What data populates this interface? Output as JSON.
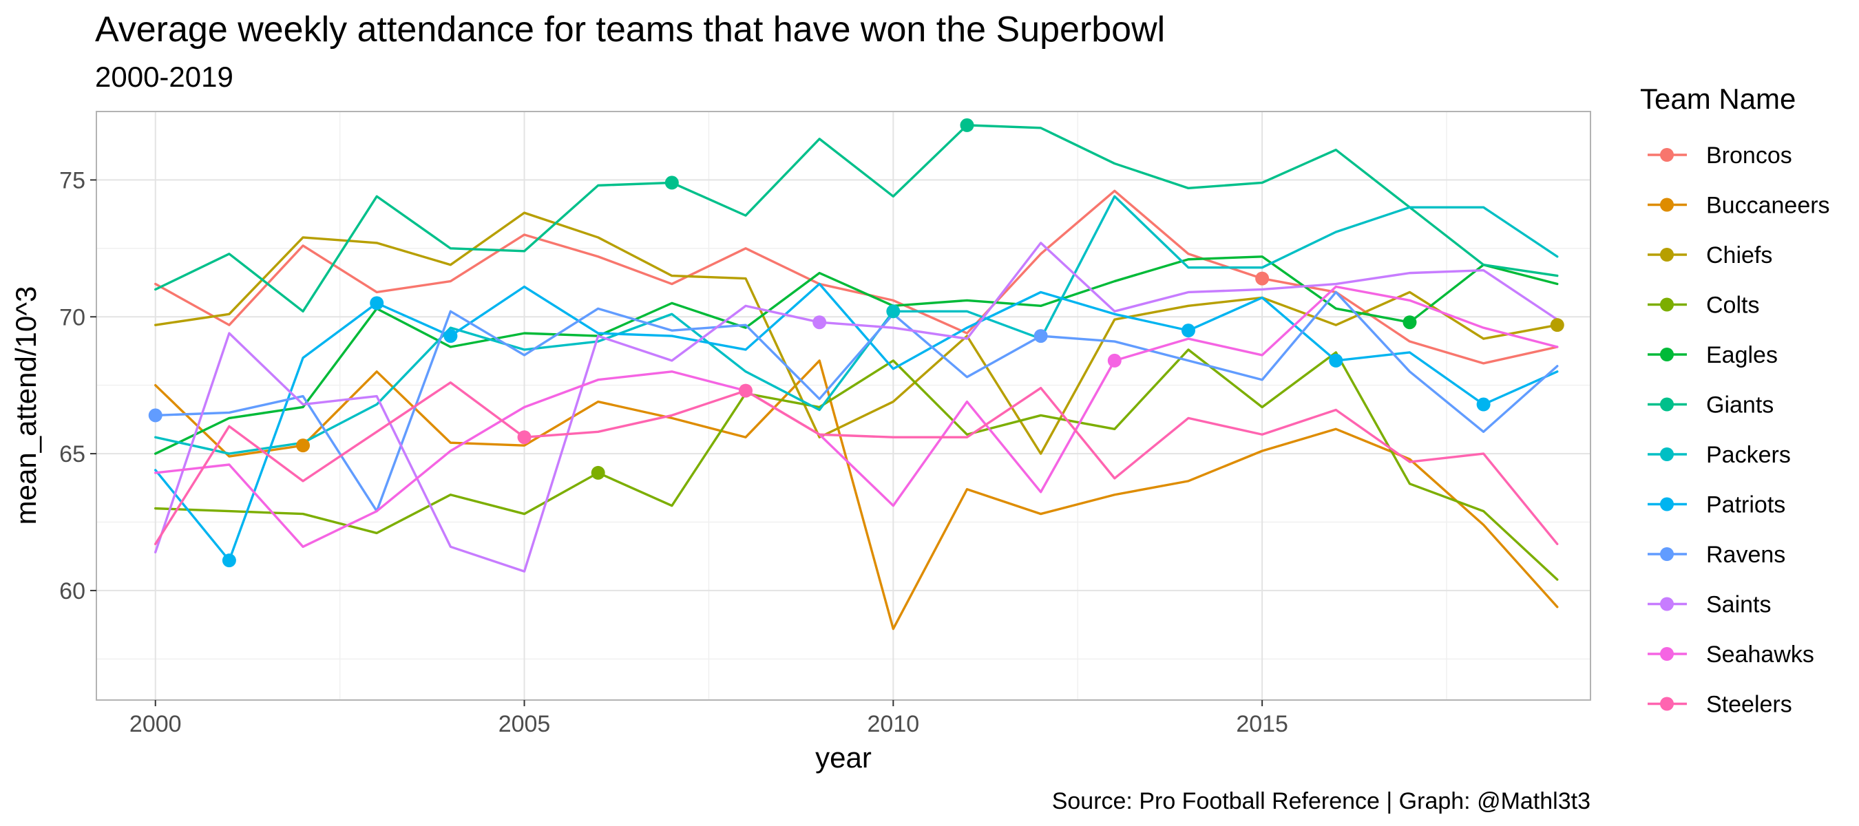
{
  "chart_data": {
    "type": "line",
    "title": "Average weekly attendance for teams that have won the Superbowl",
    "subtitle": "2000-2019",
    "xlabel": "year",
    "ylabel": "mean_attend/10^3",
    "caption": "Source: Pro Football Reference | Graph: @Mathl3t3",
    "legend_title": "Team Name",
    "legend_position": "right",
    "grid": true,
    "xlim": [
      1999.2,
      2019.45
    ],
    "ylim": [
      56.0,
      77.5
    ],
    "x_ticks": [
      2000,
      2005,
      2010,
      2015
    ],
    "y_ticks": [
      60,
      65,
      70,
      75
    ],
    "x": [
      2000,
      2001,
      2002,
      2003,
      2004,
      2005,
      2006,
      2007,
      2008,
      2009,
      2010,
      2011,
      2012,
      2013,
      2014,
      2015,
      2016,
      2017,
      2018,
      2019
    ],
    "series": [
      {
        "name": "Broncos",
        "color": "#F8766D",
        "values": [
          71.2,
          69.7,
          72.6,
          70.9,
          71.3,
          73.0,
          72.2,
          71.2,
          72.5,
          71.2,
          70.6,
          69.4,
          72.3,
          74.6,
          72.3,
          71.4,
          70.9,
          69.1,
          68.3,
          68.9
        ],
        "highlight": [
          {
            "x": 2015,
            "y": 71.4
          }
        ]
      },
      {
        "name": "Buccaneers",
        "color": "#DE8C00",
        "values": [
          67.5,
          64.9,
          65.3,
          68.0,
          65.4,
          65.3,
          66.9,
          66.3,
          65.6,
          68.4,
          58.6,
          63.7,
          62.8,
          63.5,
          64.0,
          65.1,
          65.9,
          64.8,
          62.4,
          59.4
        ],
        "highlight": [
          {
            "x": 2002,
            "y": 65.3
          }
        ]
      },
      {
        "name": "Chiefs",
        "color": "#B79F00",
        "values": [
          69.7,
          70.1,
          72.9,
          72.7,
          71.9,
          73.8,
          72.9,
          71.5,
          71.4,
          65.6,
          66.9,
          69.3,
          65.0,
          69.9,
          70.4,
          70.7,
          69.7,
          70.9,
          69.2,
          69.7
        ],
        "highlight": [
          {
            "x": 2019,
            "y": 69.7
          }
        ]
      },
      {
        "name": "Colts",
        "color": "#7CAE00",
        "values": [
          63.0,
          62.9,
          62.8,
          62.1,
          63.5,
          62.8,
          64.3,
          63.1,
          67.2,
          66.7,
          68.4,
          65.7,
          66.4,
          65.9,
          68.8,
          66.7,
          68.7,
          63.9,
          62.9,
          60.4
        ],
        "highlight": [
          {
            "x": 2006,
            "y": 64.3
          }
        ]
      },
      {
        "name": "Eagles",
        "color": "#00BA38",
        "values": [
          65.0,
          66.3,
          66.7,
          70.3,
          68.9,
          69.4,
          69.3,
          70.5,
          69.6,
          71.6,
          70.4,
          70.6,
          70.4,
          71.3,
          72.1,
          72.2,
          70.3,
          69.8,
          71.9,
          71.2
        ],
        "highlight": [
          {
            "x": 2017,
            "y": 69.8
          }
        ]
      },
      {
        "name": "Giants",
        "color": "#00C08B",
        "values": [
          71.0,
          72.3,
          70.2,
          74.4,
          72.5,
          72.4,
          74.8,
          74.9,
          73.7,
          76.5,
          74.4,
          77.0,
          76.9,
          75.6,
          74.7,
          74.9,
          76.1,
          74.0,
          71.9,
          71.5
        ],
        "highlight": [
          {
            "x": 2007,
            "y": 74.9
          },
          {
            "x": 2011,
            "y": 77.0
          }
        ]
      },
      {
        "name": "Packers",
        "color": "#00BFC4",
        "values": [
          65.6,
          65.0,
          65.4,
          66.8,
          69.6,
          68.8,
          69.1,
          70.1,
          68.0,
          66.6,
          70.2,
          70.2,
          69.2,
          74.4,
          71.8,
          71.8,
          73.1,
          74.0,
          74.0,
          72.2
        ],
        "highlight": [
          {
            "x": 2010,
            "y": 70.2
          }
        ]
      },
      {
        "name": "Patriots",
        "color": "#00B4F0",
        "values": [
          64.4,
          61.1,
          68.5,
          70.5,
          69.3,
          71.1,
          69.4,
          69.3,
          68.8,
          71.2,
          68.1,
          69.6,
          70.9,
          70.1,
          69.5,
          70.7,
          68.4,
          68.7,
          66.8,
          68.0
        ],
        "highlight": [
          {
            "x": 2001,
            "y": 61.1
          },
          {
            "x": 2003,
            "y": 70.5
          },
          {
            "x": 2004,
            "y": 69.3
          },
          {
            "x": 2014,
            "y": 69.5
          },
          {
            "x": 2016,
            "y": 68.4
          },
          {
            "x": 2018,
            "y": 66.8
          }
        ]
      },
      {
        "name": "Ravens",
        "color": "#619CFF",
        "values": [
          66.4,
          66.5,
          67.1,
          62.9,
          70.2,
          68.6,
          70.3,
          69.5,
          69.7,
          67.0,
          70.1,
          67.8,
          69.3,
          69.1,
          68.4,
          67.7,
          70.9,
          68.0,
          65.8,
          68.2
        ],
        "highlight": [
          {
            "x": 2000,
            "y": 66.4
          },
          {
            "x": 2012,
            "y": 69.3
          }
        ]
      },
      {
        "name": "Saints",
        "color": "#C77CFF",
        "values": [
          61.4,
          69.4,
          66.8,
          67.1,
          61.6,
          60.7,
          69.3,
          68.4,
          70.4,
          69.8,
          69.6,
          69.2,
          72.7,
          70.2,
          70.9,
          71.0,
          71.2,
          71.6,
          71.7,
          69.9
        ],
        "highlight": [
          {
            "x": 2009,
            "y": 69.8
          }
        ]
      },
      {
        "name": "Seahawks",
        "color": "#F564E3",
        "values": [
          64.3,
          64.6,
          61.6,
          62.9,
          65.1,
          66.7,
          67.7,
          68.0,
          67.3,
          65.7,
          63.1,
          66.9,
          63.6,
          68.4,
          69.2,
          68.6,
          71.1,
          70.6,
          69.6,
          68.9
        ],
        "highlight": [
          {
            "x": 2013,
            "y": 68.4
          }
        ]
      },
      {
        "name": "Steelers",
        "color": "#FF64B0",
        "values": [
          61.7,
          66.0,
          64.0,
          65.8,
          67.6,
          65.6,
          65.8,
          66.4,
          67.3,
          65.7,
          65.6,
          65.6,
          67.4,
          64.1,
          66.3,
          65.7,
          66.6,
          64.7,
          65.0,
          61.7
        ],
        "highlight": [
          {
            "x": 2005,
            "y": 65.6
          },
          {
            "x": 2008,
            "y": 67.3
          }
        ]
      }
    ]
  }
}
